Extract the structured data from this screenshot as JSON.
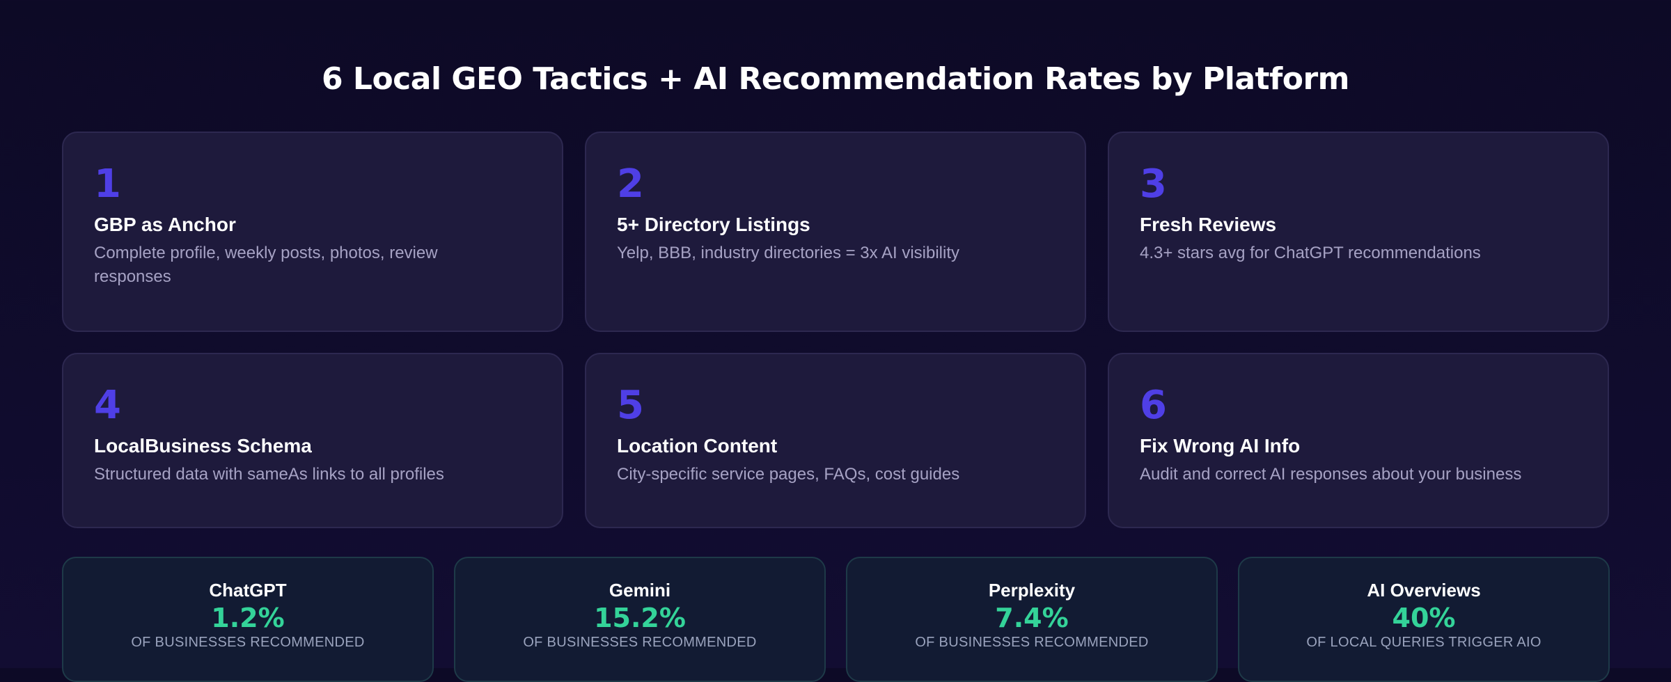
{
  "title": "6 Local GEO Tactics + AI Recommendation Rates by Platform",
  "tactics": [
    {
      "number": "1",
      "title": "GBP as Anchor",
      "description": "Complete profile, weekly posts, photos, review responses"
    },
    {
      "number": "2",
      "title": "5+ Directory Listings",
      "description": "Yelp, BBB, industry directories = 3x AI visibility"
    },
    {
      "number": "3",
      "title": "Fresh Reviews",
      "description": "4.3+ stars avg for ChatGPT recommendations"
    },
    {
      "number": "4",
      "title": "LocalBusiness Schema",
      "description": "Structured data with sameAs links to all profiles"
    },
    {
      "number": "5",
      "title": "Location Content",
      "description": "City-specific service pages, FAQs, cost guides"
    },
    {
      "number": "6",
      "title": "Fix Wrong AI Info",
      "description": "Audit and correct AI responses about your business"
    }
  ],
  "platforms": [
    {
      "name": "ChatGPT",
      "value": "1.2%",
      "label": "OF BUSINESSES RECOMMENDED"
    },
    {
      "name": "Gemini",
      "value": "15.2%",
      "label": "OF BUSINESSES RECOMMENDED"
    },
    {
      "name": "Perplexity",
      "value": "7.4%",
      "label": "OF BUSINESSES RECOMMENDED"
    },
    {
      "name": "AI Overviews",
      "value": "40%",
      "label": "OF LOCAL QUERIES TRIGGER AIO"
    }
  ],
  "colors": {
    "background": "#0f0c29",
    "card": "#1e1a3c",
    "number_accent": "#4f3fe6",
    "stat_accent": "#34d399"
  }
}
